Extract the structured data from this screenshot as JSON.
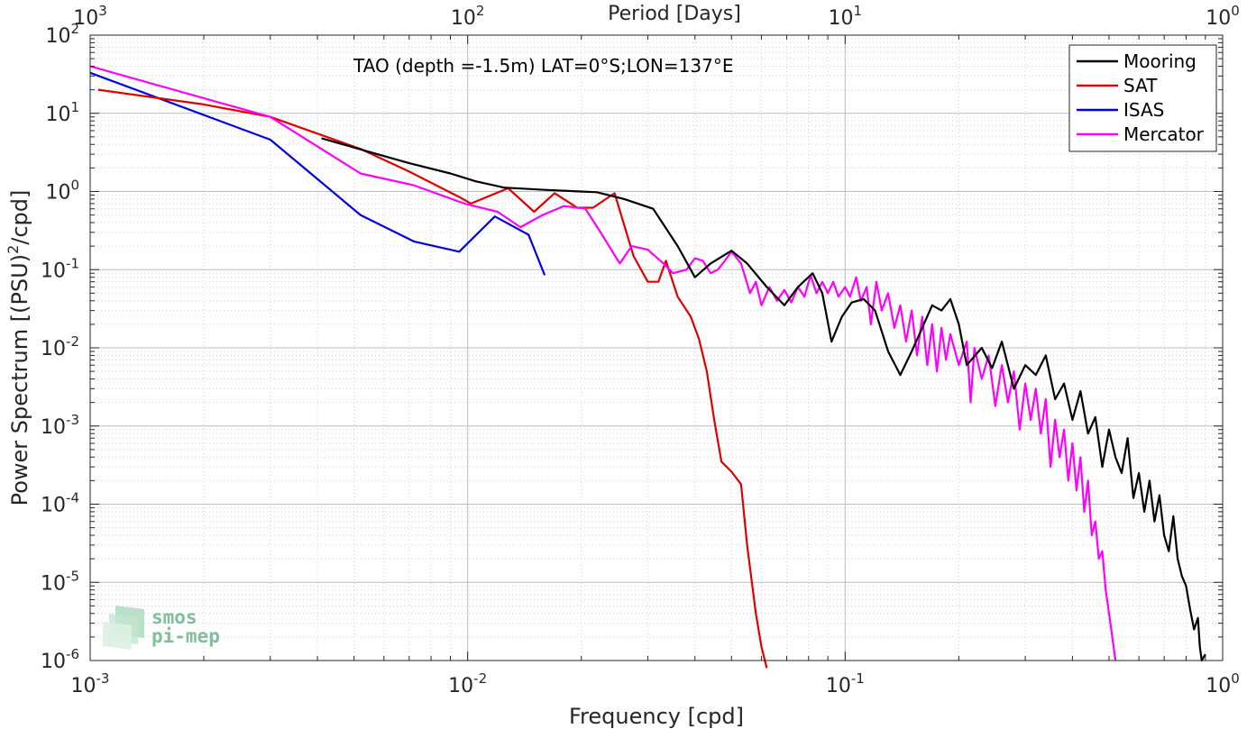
{
  "chart_data": {
    "type": "line",
    "title": "",
    "annotation": "TAO (depth =-1.5m) LAT=0°S;LON=137°E",
    "xlabel": "Frequency [cpd]",
    "x2label": "Period [Days]",
    "ylabel": "Power Spectrum [(PSU)",
    "ylabel_sup": "2",
    "ylabel_tail": "/cpd]",
    "x_scale": "log",
    "y_scale": "log",
    "xlim": [
      0.001,
      1
    ],
    "ylim": [
      1e-06,
      100
    ],
    "x2lim": [
      1000,
      1
    ],
    "grid": true,
    "legend_position": "top-right",
    "x_ticks": [
      {
        "value": 0.001,
        "base": "10",
        "exp": "-3"
      },
      {
        "value": 0.01,
        "base": "10",
        "exp": "-2"
      },
      {
        "value": 0.1,
        "base": "10",
        "exp": "-1"
      },
      {
        "value": 1,
        "base": "10",
        "exp": "0"
      }
    ],
    "x2_ticks": [
      {
        "value": 0.001,
        "base": "10",
        "exp": "3"
      },
      {
        "value": 0.01,
        "base": "10",
        "exp": "2"
      },
      {
        "value": 0.1,
        "base": "10",
        "exp": "1"
      },
      {
        "value": 1,
        "base": "10",
        "exp": "0"
      }
    ],
    "y_ticks": [
      {
        "value": 100,
        "base": "10",
        "exp": "2"
      },
      {
        "value": 10,
        "base": "10",
        "exp": "1"
      },
      {
        "value": 1,
        "base": "10",
        "exp": "0"
      },
      {
        "value": 0.1,
        "base": "10",
        "exp": "-1"
      },
      {
        "value": 0.01,
        "base": "10",
        "exp": "-2"
      },
      {
        "value": 0.001,
        "base": "10",
        "exp": "-3"
      },
      {
        "value": 0.0001,
        "base": "10",
        "exp": "-4"
      },
      {
        "value": 1e-05,
        "base": "10",
        "exp": "-5"
      },
      {
        "value": 1e-06,
        "base": "10",
        "exp": "-6"
      }
    ],
    "series": [
      {
        "name": "Mooring",
        "color": "#000000",
        "points": [
          [
            0.0041,
            4.8
          ],
          [
            0.0055,
            3.2
          ],
          [
            0.007,
            2.3
          ],
          [
            0.009,
            1.7
          ],
          [
            0.0105,
            1.35
          ],
          [
            0.0125,
            1.12
          ],
          [
            0.016,
            1.05
          ],
          [
            0.022,
            0.98
          ],
          [
            0.026,
            0.8
          ],
          [
            0.031,
            0.6
          ],
          [
            0.036,
            0.2
          ],
          [
            0.04,
            0.08
          ],
          [
            0.044,
            0.12
          ],
          [
            0.05,
            0.175
          ],
          [
            0.055,
            0.12
          ],
          [
            0.062,
            0.06
          ],
          [
            0.069,
            0.035
          ],
          [
            0.075,
            0.06
          ],
          [
            0.082,
            0.09
          ],
          [
            0.087,
            0.05
          ],
          [
            0.092,
            0.012
          ],
          [
            0.098,
            0.025
          ],
          [
            0.104,
            0.038
          ],
          [
            0.112,
            0.042
          ],
          [
            0.12,
            0.03
          ],
          [
            0.13,
            0.009
          ],
          [
            0.14,
            0.0045
          ],
          [
            0.15,
            0.009
          ],
          [
            0.16,
            0.018
          ],
          [
            0.17,
            0.035
          ],
          [
            0.18,
            0.03
          ],
          [
            0.19,
            0.042
          ],
          [
            0.2,
            0.02
          ],
          [
            0.21,
            0.006
          ],
          [
            0.23,
            0.01
          ],
          [
            0.245,
            0.0055
          ],
          [
            0.26,
            0.012
          ],
          [
            0.28,
            0.003
          ],
          [
            0.3,
            0.006
          ],
          [
            0.32,
            0.0045
          ],
          [
            0.34,
            0.008
          ],
          [
            0.36,
            0.0022
          ],
          [
            0.38,
            0.0035
          ],
          [
            0.4,
            0.0012
          ],
          [
            0.42,
            0.0028
          ],
          [
            0.44,
            0.0008
          ],
          [
            0.46,
            0.0013
          ],
          [
            0.48,
            0.0003
          ],
          [
            0.5,
            0.0009
          ],
          [
            0.52,
            0.0004
          ],
          [
            0.54,
            0.00025
          ],
          [
            0.56,
            0.0007
          ],
          [
            0.58,
            0.00012
          ],
          [
            0.6,
            0.00025
          ],
          [
            0.62,
            8e-05
          ],
          [
            0.64,
            0.0002
          ],
          [
            0.66,
            6e-05
          ],
          [
            0.68,
            0.00013
          ],
          [
            0.7,
            4e-05
          ],
          [
            0.72,
            2.5e-05
          ],
          [
            0.74,
            7e-05
          ],
          [
            0.76,
            2e-05
          ],
          [
            0.78,
            1.2e-05
          ],
          [
            0.8,
            9e-06
          ],
          [
            0.82,
            4.5e-06
          ],
          [
            0.84,
            2.5e-06
          ],
          [
            0.86,
            3.5e-06
          ],
          [
            0.87,
            1.5e-06
          ],
          [
            0.88,
            1e-06
          ],
          [
            0.9,
            1.2e-06
          ]
        ]
      },
      {
        "name": "SAT",
        "color": "#e00000",
        "points": [
          [
            0.00105,
            20
          ],
          [
            0.002,
            13
          ],
          [
            0.003,
            9
          ],
          [
            0.0052,
            3.5
          ],
          [
            0.007,
            1.8
          ],
          [
            0.0095,
            0.85
          ],
          [
            0.0102,
            0.7
          ],
          [
            0.0128,
            1.1
          ],
          [
            0.015,
            0.55
          ],
          [
            0.017,
            0.95
          ],
          [
            0.0195,
            0.62
          ],
          [
            0.0215,
            0.62
          ],
          [
            0.0245,
            0.95
          ],
          [
            0.0275,
            0.15
          ],
          [
            0.03,
            0.07
          ],
          [
            0.032,
            0.07
          ],
          [
            0.0335,
            0.13
          ],
          [
            0.036,
            0.045
          ],
          [
            0.039,
            0.025
          ],
          [
            0.041,
            0.013
          ],
          [
            0.043,
            0.005
          ],
          [
            0.045,
            0.0012
          ],
          [
            0.047,
            0.00035
          ],
          [
            0.05,
            0.00026
          ],
          [
            0.053,
            0.00018
          ],
          [
            0.055,
            3e-05
          ],
          [
            0.058,
            4e-06
          ],
          [
            0.06,
            1.5e-06
          ],
          [
            0.062,
            8e-07
          ]
        ]
      },
      {
        "name": "ISAS",
        "color": "#0000e0",
        "points": [
          [
            0.001,
            33
          ],
          [
            0.003,
            4.6
          ],
          [
            0.0052,
            0.5
          ],
          [
            0.0072,
            0.23
          ],
          [
            0.0095,
            0.17
          ],
          [
            0.0118,
            0.48
          ],
          [
            0.0145,
            0.28
          ],
          [
            0.016,
            0.085
          ]
        ]
      },
      {
        "name": "Mercator",
        "color": "#ff00ff",
        "points": [
          [
            0.001,
            40
          ],
          [
            0.003,
            9
          ],
          [
            0.0052,
            1.7
          ],
          [
            0.0072,
            1.2
          ],
          [
            0.0098,
            0.7
          ],
          [
            0.012,
            0.55
          ],
          [
            0.0138,
            0.35
          ],
          [
            0.0158,
            0.5
          ],
          [
            0.018,
            0.65
          ],
          [
            0.0205,
            0.6
          ],
          [
            0.0225,
            0.3
          ],
          [
            0.0253,
            0.12
          ],
          [
            0.0272,
            0.2
          ],
          [
            0.03,
            0.18
          ],
          [
            0.033,
            0.12
          ],
          [
            0.035,
            0.09
          ],
          [
            0.038,
            0.1
          ],
          [
            0.04,
            0.14
          ],
          [
            0.042,
            0.13
          ],
          [
            0.044,
            0.09
          ],
          [
            0.046,
            0.1
          ],
          [
            0.048,
            0.13
          ],
          [
            0.05,
            0.17
          ],
          [
            0.053,
            0.12
          ],
          [
            0.056,
            0.05
          ],
          [
            0.058,
            0.07
          ],
          [
            0.06,
            0.035
          ],
          [
            0.063,
            0.06
          ],
          [
            0.066,
            0.04
          ],
          [
            0.069,
            0.055
          ],
          [
            0.072,
            0.038
          ],
          [
            0.075,
            0.06
          ],
          [
            0.078,
            0.045
          ],
          [
            0.081,
            0.085
          ],
          [
            0.084,
            0.05
          ],
          [
            0.087,
            0.07
          ],
          [
            0.09,
            0.05
          ],
          [
            0.093,
            0.07
          ],
          [
            0.096,
            0.045
          ],
          [
            0.1,
            0.06
          ],
          [
            0.103,
            0.045
          ],
          [
            0.107,
            0.08
          ],
          [
            0.11,
            0.04
          ],
          [
            0.114,
            0.06
          ],
          [
            0.117,
            0.02
          ],
          [
            0.121,
            0.07
          ],
          [
            0.125,
            0.03
          ],
          [
            0.13,
            0.05
          ],
          [
            0.135,
            0.018
          ],
          [
            0.14,
            0.035
          ],
          [
            0.145,
            0.012
          ],
          [
            0.15,
            0.03
          ],
          [
            0.155,
            0.008
          ],
          [
            0.16,
            0.025
          ],
          [
            0.165,
            0.006
          ],
          [
            0.17,
            0.02
          ],
          [
            0.175,
            0.005
          ],
          [
            0.18,
            0.018
          ],
          [
            0.185,
            0.007
          ],
          [
            0.19,
            0.015
          ],
          [
            0.2,
            0.006
          ],
          [
            0.21,
            0.012
          ],
          [
            0.215,
            0.002
          ],
          [
            0.22,
            0.01
          ],
          [
            0.23,
            0.004
          ],
          [
            0.24,
            0.008
          ],
          [
            0.25,
            0.0018
          ],
          [
            0.26,
            0.006
          ],
          [
            0.27,
            0.002
          ],
          [
            0.28,
            0.005
          ],
          [
            0.29,
            0.0009
          ],
          [
            0.3,
            0.0035
          ],
          [
            0.31,
            0.0012
          ],
          [
            0.32,
            0.003
          ],
          [
            0.33,
            0.0008
          ],
          [
            0.34,
            0.0022
          ],
          [
            0.35,
            0.0003
          ],
          [
            0.36,
            0.0012
          ],
          [
            0.37,
            0.0004
          ],
          [
            0.38,
            0.0009
          ],
          [
            0.39,
            0.0002
          ],
          [
            0.4,
            0.0006
          ],
          [
            0.41,
            0.00015
          ],
          [
            0.42,
            0.0004
          ],
          [
            0.43,
            8e-05
          ],
          [
            0.44,
            0.0002
          ],
          [
            0.45,
            4e-05
          ],
          [
            0.46,
            6e-05
          ],
          [
            0.47,
            2e-05
          ],
          [
            0.48,
            2.5e-05
          ],
          [
            0.49,
            8e-06
          ],
          [
            0.5,
            4e-06
          ],
          [
            0.51,
            2e-06
          ],
          [
            0.52,
            1e-06
          ]
        ]
      }
    ]
  },
  "logo": {
    "line1": "smos",
    "line2": "pi-mep"
  }
}
